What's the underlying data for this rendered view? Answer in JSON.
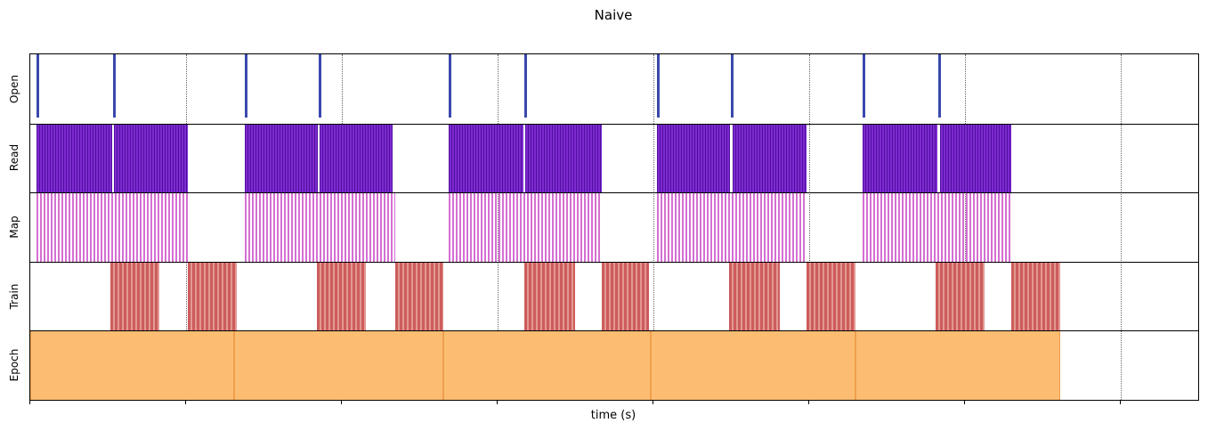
{
  "figure": {
    "title": "Naive",
    "xlabel": "time (s)"
  },
  "chart_data": {
    "type": "timeline",
    "title": "Naive",
    "xlabel": "time (s)",
    "ylabel": "",
    "xlim": [
      0,
      150
    ],
    "grid": true,
    "gridline_times_s": [
      20,
      40,
      60,
      80,
      100,
      120,
      140
    ],
    "tick_times_s": [
      0,
      20,
      40,
      60,
      80,
      100,
      120,
      140
    ],
    "row_labels": [
      "Open",
      "Read",
      "Map",
      "Train",
      "Epoch"
    ],
    "rows": [
      {
        "label": "Open",
        "kind": "events",
        "color": "#3a48ac",
        "event_width_s": 0.35,
        "events_s": [
          0.8,
          10.6,
          27.6,
          37.0,
          53.7,
          63.4,
          80.5,
          90.0,
          106.9,
          116.6
        ]
      },
      {
        "label": "Read",
        "kind": "dense",
        "color": "#7e2ad1",
        "stripe_color": "#4f0f9e",
        "intervals_s": [
          [
            0.8,
            10.5
          ],
          [
            10.8,
            20.2
          ],
          [
            27.6,
            36.9
          ],
          [
            37.2,
            46.5
          ],
          [
            53.7,
            63.3
          ],
          [
            63.6,
            73.4
          ],
          [
            80.5,
            89.9
          ],
          [
            90.2,
            99.7
          ],
          [
            106.9,
            116.5
          ],
          [
            116.8,
            126.0
          ]
        ]
      },
      {
        "label": "Map",
        "kind": "sparse",
        "color": "#d56fd2",
        "intervals_s": [
          [
            0.8,
            20.4
          ],
          [
            27.6,
            46.9
          ],
          [
            53.7,
            73.4
          ],
          [
            80.5,
            99.7
          ],
          [
            106.9,
            126.0
          ]
        ]
      },
      {
        "label": "Train",
        "kind": "medium",
        "color": "#cd5c5c",
        "stripe_color": "#e29992",
        "intervals_s": [
          [
            10.3,
            16.6
          ],
          [
            20.2,
            26.5
          ],
          [
            36.8,
            43.1
          ],
          [
            46.9,
            53.0
          ],
          [
            63.4,
            70.0
          ],
          [
            73.4,
            79.5
          ],
          [
            89.7,
            96.3
          ],
          [
            99.7,
            106.0
          ],
          [
            116.3,
            122.6
          ],
          [
            126.0,
            132.3
          ]
        ]
      },
      {
        "label": "Epoch",
        "kind": "solid",
        "color": "#fcbd72",
        "edge_color": "#ef9f4b",
        "intervals_s": [
          [
            0.0,
            26.2
          ],
          [
            26.2,
            53.0
          ],
          [
            53.0,
            79.7
          ],
          [
            79.7,
            106.0
          ],
          [
            106.0,
            132.3
          ]
        ]
      }
    ]
  }
}
